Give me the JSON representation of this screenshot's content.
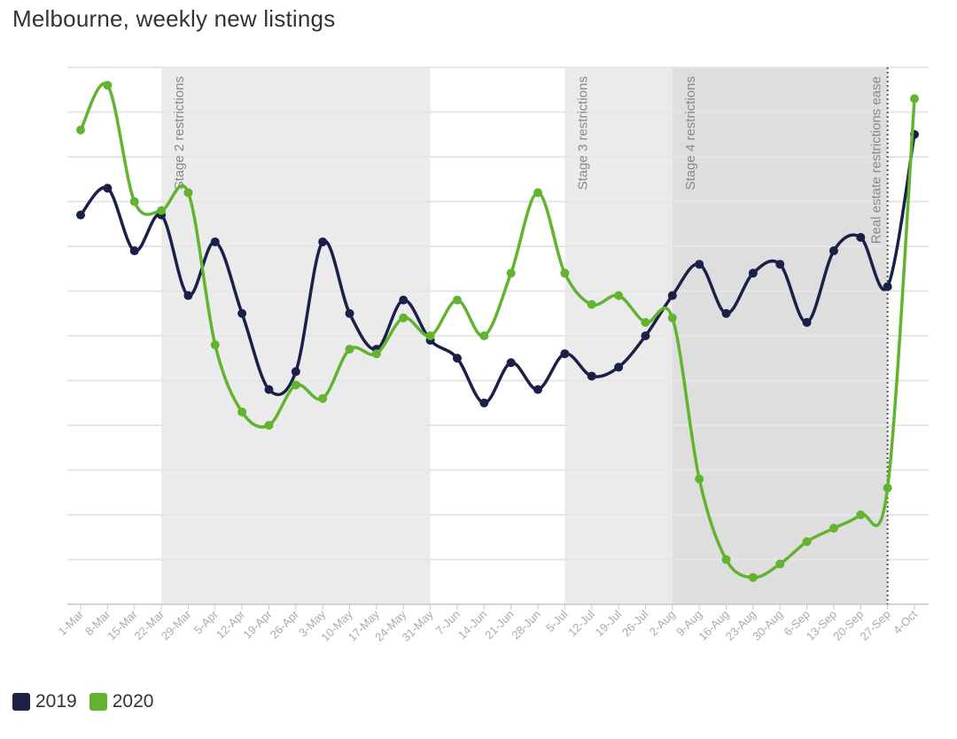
{
  "chart_data": {
    "type": "line",
    "title": "Melbourne, weekly new listings",
    "categories": [
      "1-Mar",
      "8-Mar",
      "15-Mar",
      "22-Mar",
      "29-Mar",
      "5-Apr",
      "12-Apr",
      "19-Apr",
      "26-Apr",
      "3-May",
      "10-May",
      "17-May",
      "24-May",
      "31-May",
      "7-Jun",
      "14-Jun",
      "21-Jun",
      "28-Jun",
      "5-Jul",
      "12-Jul",
      "19-Jul",
      "26-Jul",
      "2-Aug",
      "9-Aug",
      "16-Aug",
      "23-Aug",
      "30-Aug",
      "6-Sep",
      "13-Sep",
      "20-Sep",
      "27-Sep",
      "4-Oct"
    ],
    "ylim": [
      0,
      12
    ],
    "grid": true,
    "legend_position": "bottom-left",
    "series": [
      {
        "name": "2019",
        "color": "#1a2048",
        "values": [
          8.7,
          9.3,
          7.9,
          8.7,
          6.9,
          8.1,
          6.5,
          4.8,
          5.2,
          8.1,
          6.5,
          5.7,
          6.8,
          5.9,
          5.5,
          4.5,
          5.4,
          4.8,
          5.6,
          5.1,
          5.3,
          6.0,
          6.9,
          7.6,
          6.5,
          7.4,
          7.6,
          6.3,
          7.9,
          8.2,
          7.1,
          10.5
        ]
      },
      {
        "name": "2020",
        "color": "#62b32f",
        "values": [
          10.6,
          11.6,
          9.0,
          8.8,
          9.2,
          5.8,
          4.3,
          4.0,
          4.9,
          4.6,
          5.7,
          5.6,
          6.4,
          6.0,
          6.8,
          6.0,
          7.4,
          9.2,
          7.4,
          6.7,
          6.9,
          6.3,
          6.4,
          2.8,
          1.0,
          0.6,
          0.9,
          1.4,
          1.7,
          2.0,
          2.6,
          11.3
        ]
      }
    ],
    "shaded_periods": [
      {
        "label": "Stage 2 restrictions",
        "start": "22-Mar",
        "end": "31-May",
        "color": "#ebebeb"
      },
      {
        "label": "Stage 3 restrictions",
        "start": "5-Jul",
        "end": "2-Aug",
        "color": "#ebebeb"
      },
      {
        "label": "Stage 4 restrictions",
        "start": "2-Aug",
        "end": "27-Sep",
        "color": "#dedede"
      }
    ],
    "annotations": [
      {
        "label": "Real estate restrictions ease",
        "at": "27-Sep",
        "style": "dotted-line"
      }
    ]
  },
  "legend": {
    "item_2019": "2019",
    "item_2020": "2020"
  }
}
